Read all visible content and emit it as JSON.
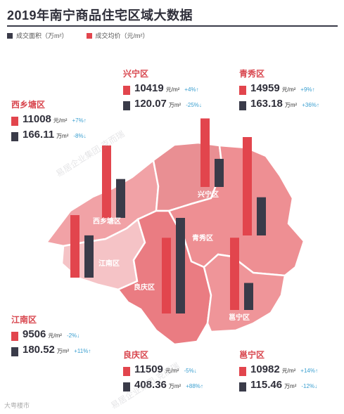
{
  "title": "2019年南宁商品住宅区域大数据",
  "legend": {
    "area_label": "成交面积（万m²）",
    "price_label": "成交均价（元/m²）"
  },
  "colors": {
    "area": "#3a3b49",
    "price": "#e2454d",
    "change": "#3a9fd0",
    "title": "#2f2f3a",
    "name": "#d8454d"
  },
  "districts": {
    "xingning": {
      "name": "兴宁区",
      "map_label": "兴宁区",
      "price": "10419",
      "price_unit": "元/m²",
      "price_change": "+4%↑",
      "area": "120.07",
      "area_unit": "万m²",
      "area_change": "-25%↓"
    },
    "qingxiu": {
      "name": "青秀区",
      "map_label": "青秀区",
      "price": "14959",
      "price_unit": "元/m²",
      "price_change": "+9%↑",
      "area": "163.18",
      "area_unit": "万m²",
      "area_change": "+36%↑"
    },
    "xixiangtang": {
      "name": "西乡塘区",
      "map_label": "西乡塘区",
      "price": "11008",
      "price_unit": "元/m²",
      "price_change": "+7%↑",
      "area": "166.11",
      "area_unit": "万m²",
      "area_change": "-8%↓"
    },
    "jiangnan": {
      "name": "江南区",
      "map_label": "江南区",
      "price": "9506",
      "price_unit": "元/m²",
      "price_change": "-2%↓",
      "area": "180.52",
      "area_unit": "万m²",
      "area_change": "+11%↑"
    },
    "liangqing": {
      "name": "良庆区",
      "map_label": "良庆区",
      "price": "11509",
      "price_unit": "元/m²",
      "price_change": "-5%↓",
      "area": "408.36",
      "area_unit": "万m²",
      "area_change": "+88%↑"
    },
    "yongning": {
      "name": "邕宁区",
      "map_label": "邕宁区",
      "price": "10982",
      "price_unit": "元/m²",
      "price_change": "+14%↑",
      "area": "115.46",
      "area_unit": "万m²",
      "area_change": "-12%↓"
    }
  },
  "chart_data": {
    "type": "bar",
    "categories": [
      "西乡塘区",
      "兴宁区",
      "青秀区",
      "江南区",
      "良庆区",
      "邕宁区"
    ],
    "series": [
      {
        "name": "成交均价（元/m²）",
        "values": [
          11008,
          10419,
          14959,
          9506,
          11509,
          10982
        ]
      },
      {
        "name": "成交面积（万m²）",
        "values": [
          166.11,
          120.07,
          163.18,
          180.52,
          408.36,
          115.46
        ]
      }
    ]
  },
  "watermarks": {
    "diagonal": "易居企业集团·克而瑞",
    "footer": "大粤楼市"
  }
}
